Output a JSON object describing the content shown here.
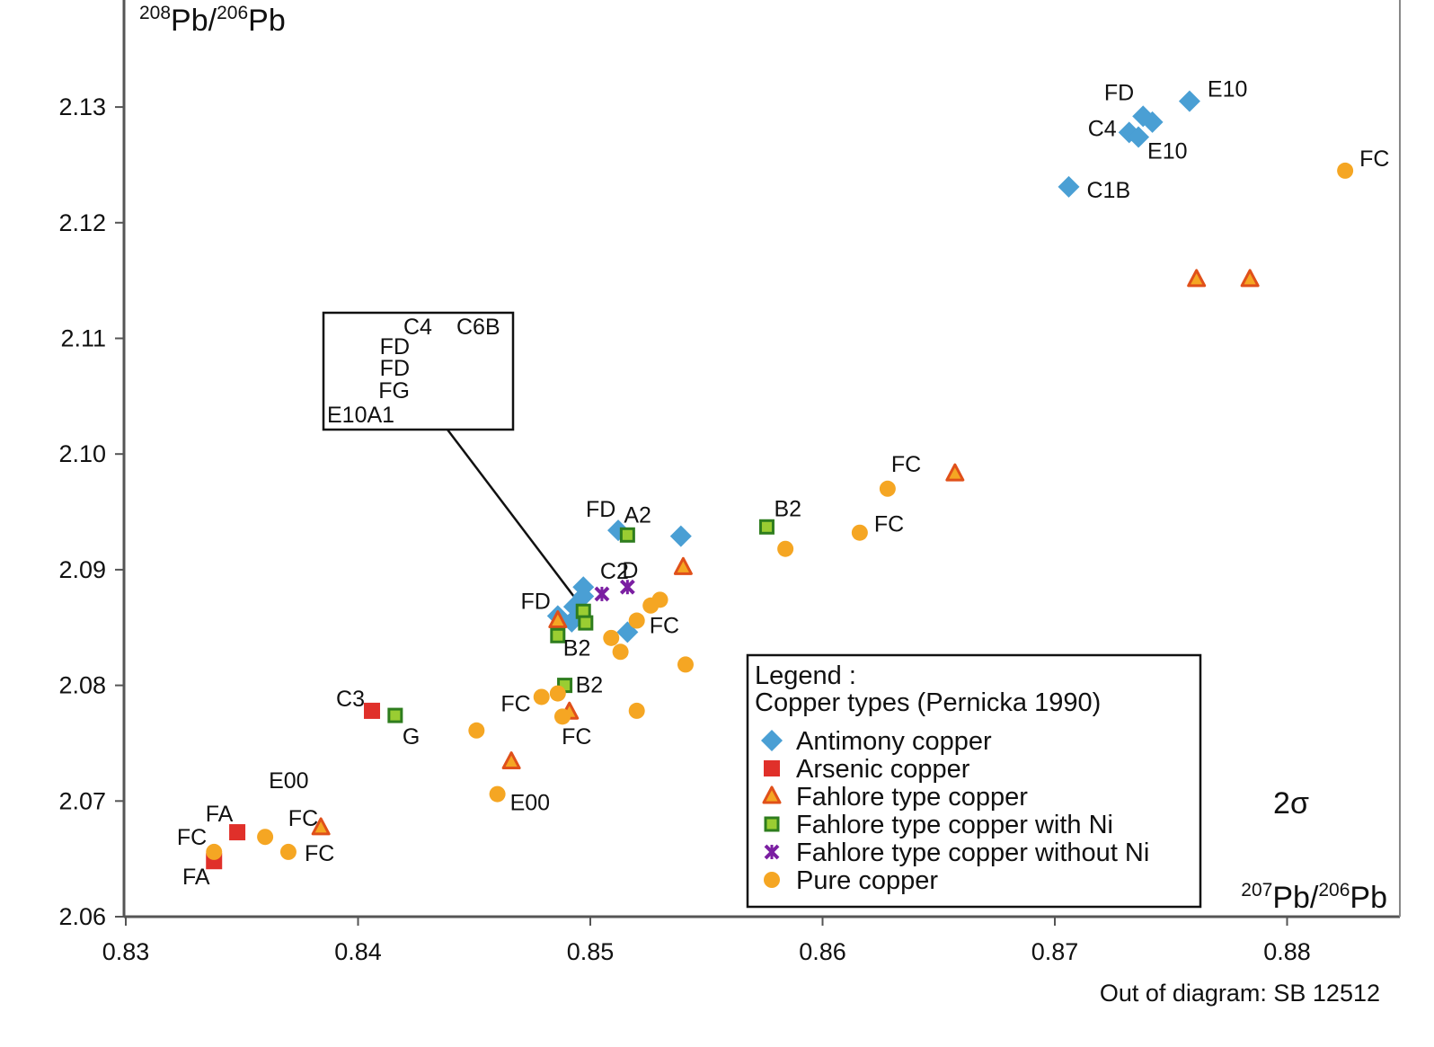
{
  "chart_data": {
    "type": "scatter",
    "title": "",
    "xlabel": {
      "sup1": "207",
      "base1": "Pb/",
      "sup2": "206",
      "base2": "Pb"
    },
    "ylabel": {
      "sup1": "208",
      "base1": "Pb/",
      "sup2": "206",
      "base2": "Pb"
    },
    "xlim": [
      0.83,
      0.885
    ],
    "ylim": [
      2.06,
      2.14
    ],
    "x_ticks": [
      "0.83",
      "0.84",
      "0.85",
      "0.86",
      "0.87",
      "0.88"
    ],
    "y_ticks": [
      "2.06",
      "2.07",
      "2.08",
      "2.09",
      "2.10",
      "2.11",
      "2.12",
      "2.13"
    ],
    "grid": false,
    "legend_position": "bottom-right",
    "legend": {
      "title": "Legend :",
      "subtitle": "Copper types (Pernicka 1990)"
    },
    "series": [
      {
        "name": "Antimony copper",
        "marker": "diamond",
        "color": "#4a9fd4",
        "points": [
          {
            "x": 0.8758,
            "y": 2.1305,
            "label": "E10"
          },
          {
            "x": 0.8738,
            "y": 2.1292,
            "label": "FD"
          },
          {
            "x": 0.8742,
            "y": 2.1287,
            "label": ""
          },
          {
            "x": 0.8732,
            "y": 2.1278,
            "label": "C4"
          },
          {
            "x": 0.8736,
            "y": 2.1274,
            "label": "E10"
          },
          {
            "x": 0.8706,
            "y": 2.1231,
            "label": "C1B"
          },
          {
            "x": 0.8512,
            "y": 2.0934,
            "label": "FD"
          },
          {
            "x": 0.8539,
            "y": 2.0929,
            "label": ""
          },
          {
            "x": 0.8497,
            "y": 2.0885,
            "label": ""
          },
          {
            "x": 0.8497,
            "y": 2.0877,
            "label": ""
          },
          {
            "x": 0.8493,
            "y": 2.0868,
            "label": ""
          },
          {
            "x": 0.8486,
            "y": 2.086,
            "label": "FD"
          },
          {
            "x": 0.8492,
            "y": 2.0855,
            "label": ""
          },
          {
            "x": 0.8516,
            "y": 2.0846,
            "label": ""
          }
        ]
      },
      {
        "name": "Arsenic copper",
        "marker": "square",
        "color": "#e0302a",
        "points": [
          {
            "x": 0.8406,
            "y": 2.0778,
            "label": "C3"
          },
          {
            "x": 0.8348,
            "y": 2.0673,
            "label": "FA"
          },
          {
            "x": 0.8338,
            "y": 2.0648,
            "label": "FA"
          }
        ]
      },
      {
        "name": "Fahlore type copper",
        "marker": "triangle",
        "color": "#f5a623",
        "stroke": "#e0501a",
        "points": [
          {
            "x": 0.8761,
            "y": 2.1151,
            "label": ""
          },
          {
            "x": 0.8784,
            "y": 2.1151,
            "label": ""
          },
          {
            "x": 0.8657,
            "y": 2.0983,
            "label": ""
          },
          {
            "x": 0.854,
            "y": 2.0902,
            "label": ""
          },
          {
            "x": 0.8486,
            "y": 2.0856,
            "label": ""
          },
          {
            "x": 0.8491,
            "y": 2.0777,
            "label": "FC"
          },
          {
            "x": 0.8466,
            "y": 2.0734,
            "label": ""
          },
          {
            "x": 0.8384,
            "y": 2.0677,
            "label": "FC"
          }
        ]
      },
      {
        "name": "Fahlore type copper with Ni",
        "marker": "square-ni",
        "color": "#9acd32",
        "stroke": "#2e7d1e",
        "points": [
          {
            "x": 0.8576,
            "y": 2.0937,
            "label": "B2"
          },
          {
            "x": 0.8516,
            "y": 2.093,
            "label": "A2"
          },
          {
            "x": 0.8497,
            "y": 2.0864,
            "label": ""
          },
          {
            "x": 0.8498,
            "y": 2.0854,
            "label": ""
          },
          {
            "x": 0.8486,
            "y": 2.0843,
            "label": "B2"
          },
          {
            "x": 0.8489,
            "y": 2.08,
            "label": "B2"
          },
          {
            "x": 0.8416,
            "y": 2.0774,
            "label": "G"
          }
        ]
      },
      {
        "name": "Fahlore type copper without Ni",
        "marker": "cross",
        "color": "#7b1fa2",
        "points": [
          {
            "x": 0.8516,
            "y": 2.0885,
            "label": "D"
          },
          {
            "x": 0.8505,
            "y": 2.0879,
            "label": "C2"
          }
        ]
      },
      {
        "name": "Pure copper",
        "marker": "circle",
        "color": "#f5a623",
        "points": [
          {
            "x": 0.8825,
            "y": 2.1245,
            "label": "FC"
          },
          {
            "x": 0.8628,
            "y": 2.097,
            "label": "FC"
          },
          {
            "x": 0.8616,
            "y": 2.0932,
            "label": "FC"
          },
          {
            "x": 0.8584,
            "y": 2.0918,
            "label": ""
          },
          {
            "x": 0.853,
            "y": 2.0874,
            "label": ""
          },
          {
            "x": 0.8526,
            "y": 2.0869,
            "label": ""
          },
          {
            "x": 0.852,
            "y": 2.0856,
            "label": "FC"
          },
          {
            "x": 0.8509,
            "y": 2.0841,
            "label": ""
          },
          {
            "x": 0.8513,
            "y": 2.0829,
            "label": ""
          },
          {
            "x": 0.8541,
            "y": 2.0818,
            "label": ""
          },
          {
            "x": 0.8486,
            "y": 2.0793,
            "label": ""
          },
          {
            "x": 0.8479,
            "y": 2.079,
            "label": "FC"
          },
          {
            "x": 0.852,
            "y": 2.0778,
            "label": ""
          },
          {
            "x": 0.8488,
            "y": 2.0773,
            "label": ""
          },
          {
            "x": 0.8451,
            "y": 2.0761,
            "label": ""
          },
          {
            "x": 0.846,
            "y": 2.0706,
            "label": "E00"
          },
          {
            "x": 0.836,
            "y": 2.0669,
            "label": "E00"
          },
          {
            "x": 0.8338,
            "y": 2.0656,
            "label": "FC"
          },
          {
            "x": 0.837,
            "y": 2.0656,
            "label": "FC"
          }
        ]
      }
    ],
    "annotations": {
      "inset_box": {
        "labels": [
          "C4",
          "C6B",
          "FD",
          "FD",
          "FG",
          "E10A1"
        ]
      },
      "sigma": "2σ",
      "footnote": "Out of diagram: SB 12512"
    }
  }
}
